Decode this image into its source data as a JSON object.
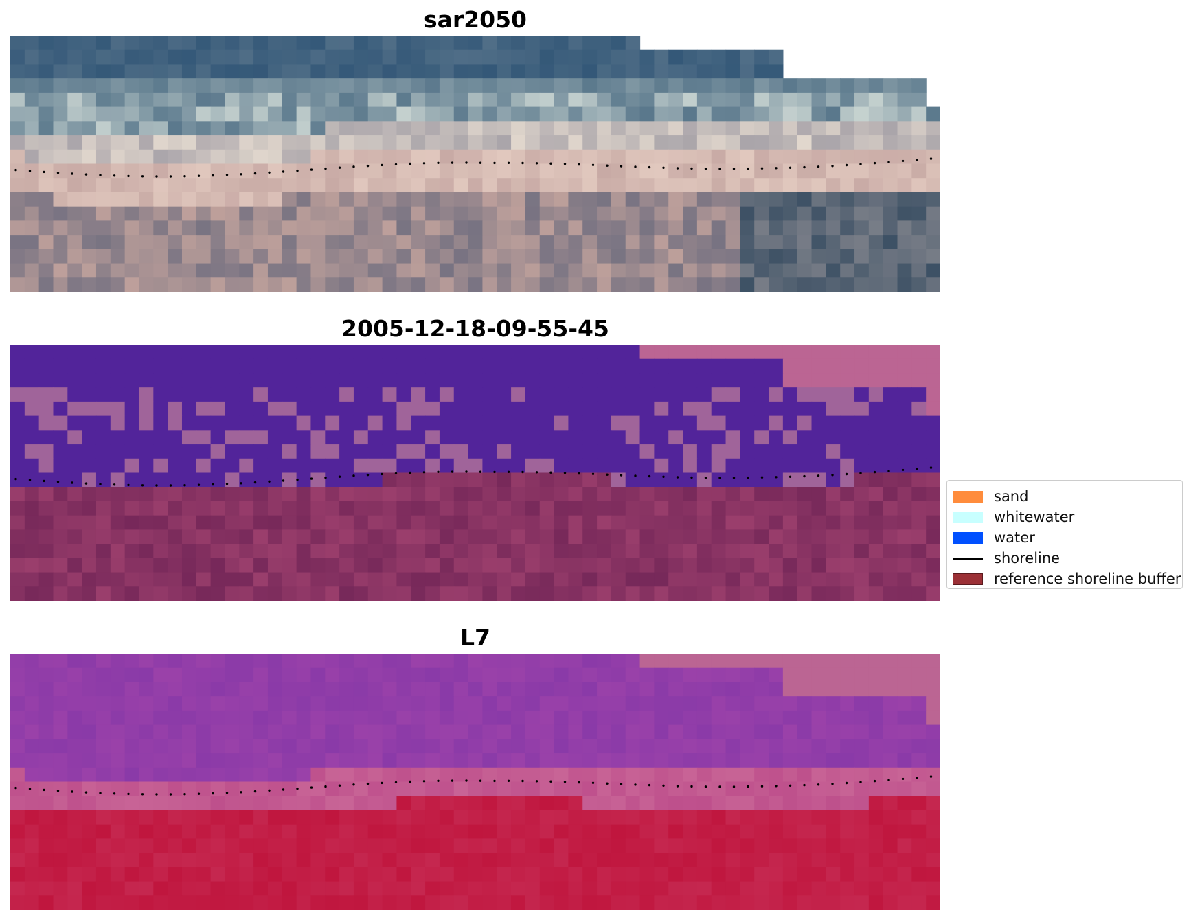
{
  "panels": [
    {
      "title": "sar2050",
      "kind": "rgb"
    },
    {
      "title": "2005-12-18-09-55-45",
      "kind": "classified"
    },
    {
      "title": "L7",
      "kind": "index"
    }
  ],
  "legend": {
    "items": [
      {
        "label": "sand",
        "type": "patch",
        "color": "#ff8c3c"
      },
      {
        "label": "whitewater",
        "type": "patch",
        "color": "#c8ffff"
      },
      {
        "label": "water",
        "type": "patch",
        "color": "#0050ff"
      },
      {
        "label": "shoreline",
        "type": "line",
        "color": "#000000"
      },
      {
        "label": "reference shoreline buffer",
        "type": "patch",
        "color": "#9b3036"
      }
    ]
  },
  "colors": {
    "water_class": "#52249a",
    "whitewater_class": "#a0649a",
    "buffer_pink": "#bb6593",
    "land_class": "#9a3e6c",
    "index_high": "#8a3aa8",
    "index_low": "#c0163e"
  }
}
